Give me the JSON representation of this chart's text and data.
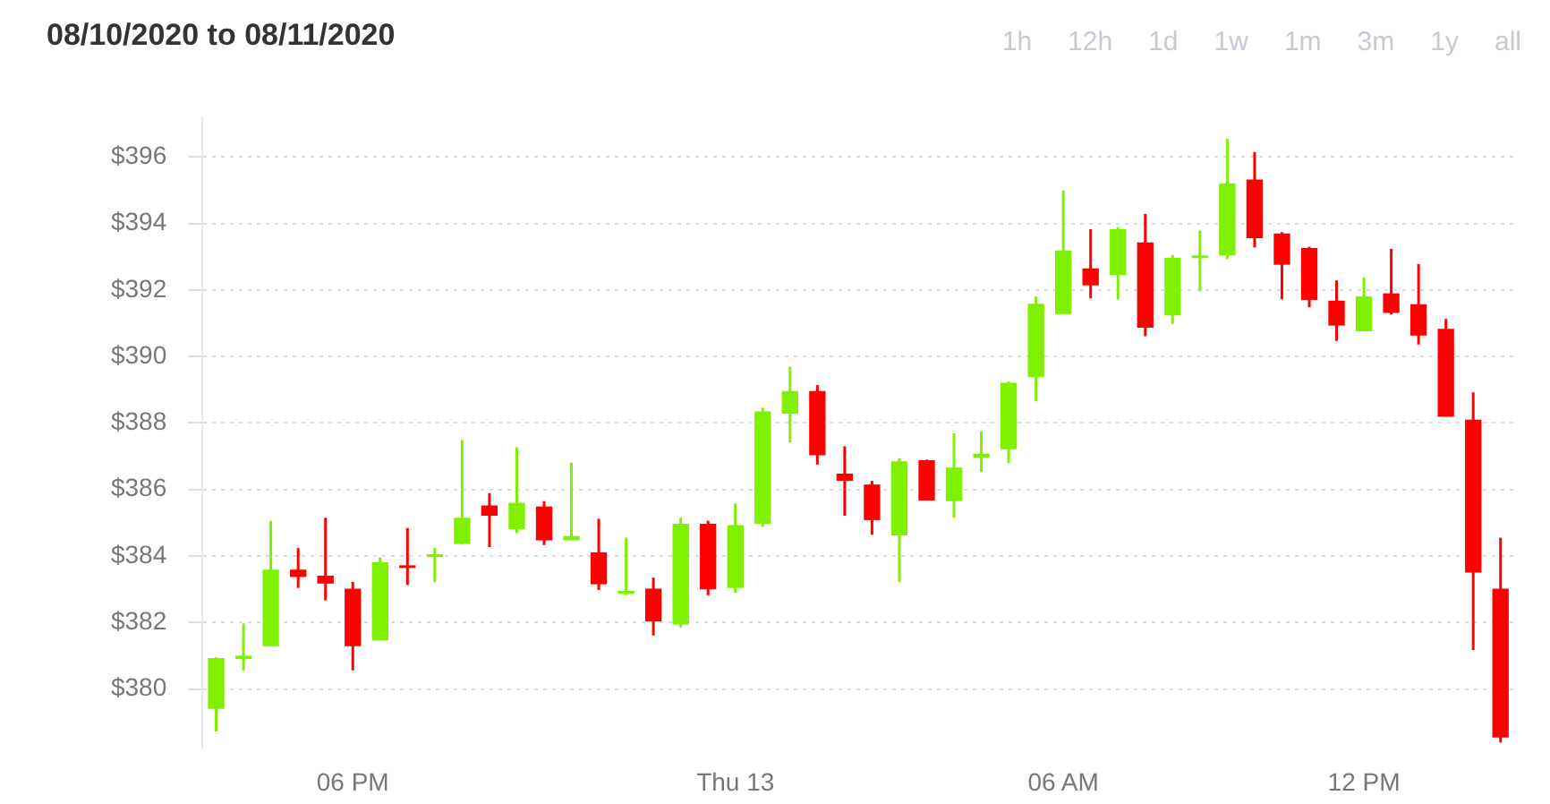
{
  "chart_data": {
    "type": "candlestick",
    "title": "08/10/2020 to 08/11/2020",
    "annotations": [
      "1h",
      "12h",
      "1d",
      "1w",
      "1m",
      "3m",
      "1y",
      "all"
    ],
    "categories": [
      null,
      null,
      null,
      null,
      null,
      "06 PM",
      null,
      null,
      null,
      null,
      null,
      null,
      null,
      null,
      null,
      null,
      null,
      null,
      null,
      "Thu 13",
      null,
      null,
      null,
      null,
      null,
      null,
      null,
      null,
      null,
      null,
      null,
      "06 AM",
      null,
      null,
      null,
      null,
      null,
      null,
      null,
      null,
      null,
      null,
      "12 PM",
      null,
      null,
      null,
      null,
      null
    ],
    "ohlc": [
      [
        379.4,
        380.95,
        378.72,
        380.93
      ],
      [
        380.9,
        381.97,
        380.56,
        381.0
      ],
      [
        381.29,
        385.06,
        381.29,
        383.59
      ],
      [
        383.59,
        384.24,
        383.04,
        383.37
      ],
      [
        383.41,
        385.15,
        382.67,
        383.17
      ],
      [
        383.02,
        383.22,
        380.56,
        381.29
      ],
      [
        381.46,
        383.96,
        381.46,
        383.81
      ],
      [
        383.72,
        384.84,
        383.13,
        383.7
      ],
      [
        384.03,
        384.24,
        383.22,
        384.05
      ],
      [
        384.36,
        387.49,
        384.36,
        385.15
      ],
      [
        385.52,
        385.89,
        384.27,
        385.21
      ],
      [
        384.81,
        387.27,
        384.69,
        385.6
      ],
      [
        385.49,
        385.65,
        384.33,
        384.47
      ],
      [
        384.47,
        386.81,
        384.47,
        384.6
      ],
      [
        384.11,
        385.12,
        382.98,
        383.15
      ],
      [
        382.86,
        384.55,
        382.82,
        382.95
      ],
      [
        383.02,
        383.35,
        381.61,
        382.03
      ],
      [
        381.94,
        385.15,
        381.85,
        384.97
      ],
      [
        384.97,
        385.06,
        382.82,
        383.0
      ],
      [
        383.04,
        385.58,
        382.89,
        384.93
      ],
      [
        384.97,
        388.46,
        384.88,
        388.35
      ],
      [
        388.28,
        389.69,
        387.42,
        388.96
      ],
      [
        388.96,
        389.14,
        386.75,
        387.03
      ],
      [
        386.48,
        387.3,
        385.21,
        386.26
      ],
      [
        386.15,
        386.26,
        384.64,
        385.08
      ],
      [
        384.62,
        386.94,
        383.22,
        386.85
      ],
      [
        386.88,
        386.9,
        385.67,
        385.67
      ],
      [
        385.65,
        387.69,
        385.15,
        386.66
      ],
      [
        386.96,
        387.75,
        386.53,
        387.08
      ],
      [
        387.21,
        389.25,
        386.79,
        389.21
      ],
      [
        389.38,
        391.81,
        388.65,
        391.59
      ],
      [
        391.28,
        394.99,
        391.28,
        393.19
      ],
      [
        392.65,
        393.83,
        391.75,
        392.14
      ],
      [
        392.45,
        393.89,
        391.72,
        393.83
      ],
      [
        393.43,
        394.29,
        390.61,
        390.87
      ],
      [
        391.24,
        393.05,
        390.98,
        392.97
      ],
      [
        393.02,
        393.79,
        391.96,
        393.04
      ],
      [
        393.04,
        396.55,
        392.93,
        395.21
      ],
      [
        395.32,
        396.15,
        393.28,
        393.56
      ],
      [
        393.7,
        393.74,
        391.72,
        392.76
      ],
      [
        393.26,
        393.3,
        391.48,
        391.7
      ],
      [
        391.68,
        392.29,
        390.47,
        390.93
      ],
      [
        390.76,
        392.38,
        390.76,
        391.81
      ],
      [
        391.9,
        393.24,
        391.26,
        391.31
      ],
      [
        391.57,
        392.78,
        390.36,
        390.63
      ],
      [
        390.83,
        391.13,
        388.19,
        388.19
      ],
      [
        388.1,
        388.92,
        381.17,
        383.5
      ],
      [
        383.02,
        384.55,
        378.39,
        378.54
      ]
    ],
    "colors": [
      "#7ff000",
      "#7ff000",
      "#7ff000",
      "#ff0000",
      "#ff0000",
      "#ff0000",
      "#7ff000",
      "#ff0000",
      "#7ff000",
      "#7ff000",
      "#ff0000",
      "#7ff000",
      "#ff0000",
      "#7ff000",
      "#ff0000",
      "#7ff000",
      "#ff0000",
      "#7ff000",
      "#ff0000",
      "#7ff000",
      "#7ff000",
      "#7ff000",
      "#ff0000",
      "#ff0000",
      "#ff0000",
      "#7ff000",
      "#ff0000",
      "#7ff000",
      "#7ff000",
      "#7ff000",
      "#7ff000",
      "#7ff000",
      "#ff0000",
      "#7ff000",
      "#ff0000",
      "#7ff000",
      "#7ff000",
      "#7ff000",
      "#ff0000",
      "#ff0000",
      "#ff0000",
      "#ff0000",
      "#7ff000",
      "#ff0000",
      "#ff0000",
      "#ff0000",
      "#ff0000",
      "#ff0000"
    ],
    "ylim": [
      378.2,
      397.2
    ],
    "yticks": [
      {
        "value": 380,
        "label": "$380"
      },
      {
        "value": 382,
        "label": "$382"
      },
      {
        "value": 384,
        "label": "$384"
      },
      {
        "value": 386,
        "label": "$386"
      },
      {
        "value": 388,
        "label": "$388"
      },
      {
        "value": 390,
        "label": "$390"
      },
      {
        "value": 392,
        "label": "$392"
      },
      {
        "value": 394,
        "label": "$394"
      },
      {
        "value": 396,
        "label": "$396"
      }
    ],
    "grid": "y"
  }
}
